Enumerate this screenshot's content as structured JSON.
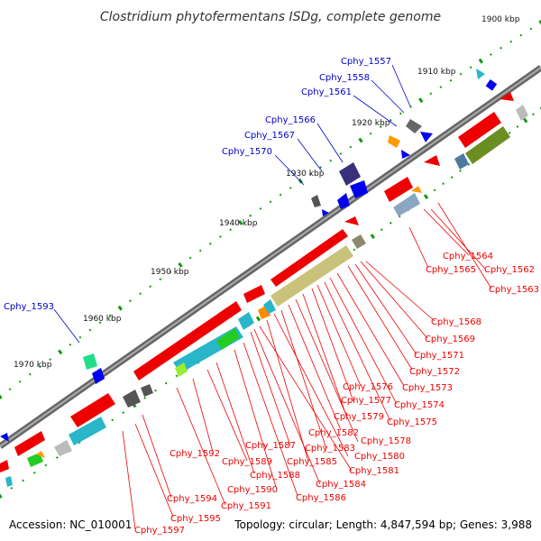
{
  "title": "Clostridium phytofermentans ISDg, complete genome",
  "footer": {
    "accession": "Accession: NC_010001",
    "summary": "Topology: circular; Length: 4,847,594 bp; Genes: 3,988"
  },
  "colors": {
    "forward_label": "#0000cc",
    "reverse_label": "#ee0000",
    "forward_arrow": "#0000ee",
    "reverse_arrow": "#ee0000",
    "backbone": "#7a7a7a",
    "tick": "#119911"
  },
  "scale_labels": [
    "1900 kbp",
    "1910 kbp",
    "1920 kbp",
    "1930 kbp",
    "1940 kbp",
    "1950 kbp",
    "1960 kbp",
    "1970 kbp"
  ],
  "forward_labels": [
    "Cphy_1557",
    "Cphy_1558",
    "Cphy_1561",
    "Cphy_1566",
    "Cphy_1567",
    "Cphy_1570",
    "Cphy_1593"
  ],
  "reverse_labels": [
    "Cphy_1564",
    "Cphy_1565",
    "Cphy_1562",
    "Cphy_1563",
    "Cphy_1568",
    "Cphy_1569",
    "Cphy_1571",
    "Cphy_1572",
    "Cphy_1573",
    "Cphy_1574",
    "Cphy_1576",
    "Cphy_1577",
    "Cphy_1575",
    "Cphy_1579",
    "Cphy_1582",
    "Cphy_1578",
    "Cphy_1583",
    "Cphy_1580",
    "Cphy_1585",
    "Cphy_1581",
    "Cphy_1587",
    "Cphy_1584",
    "Cphy_1592",
    "Cphy_1589",
    "Cphy_1588",
    "Cphy_1590",
    "Cphy_1586",
    "Cphy_1594",
    "Cphy_1591",
    "Cphy_1595",
    "Cphy_1597"
  ]
}
